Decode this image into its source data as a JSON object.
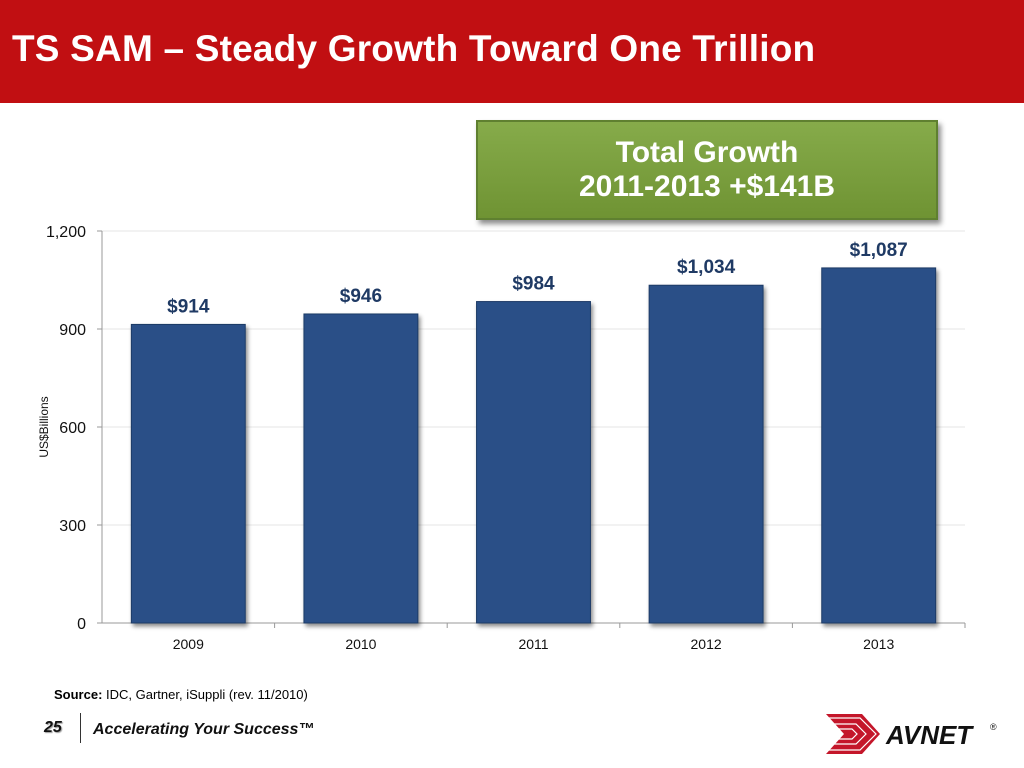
{
  "slide": {
    "title": "TS SAM – Steady Growth Toward One Trillion",
    "callout": {
      "line1": "Total Growth",
      "line2": "2011-2013 +$141B"
    },
    "source_label": "Source:",
    "source_text": " IDC, Gartner, iSuppli (rev. 11/2010)",
    "page_number": "25",
    "tagline": "Accelerating Your Success™",
    "logo_text": "AVNET",
    "logo_mark": "®"
  },
  "colors": {
    "header": "#c10f12",
    "bar": "#2a5087",
    "callout": "#7a9e3e",
    "data_label": "#1f3a64"
  },
  "chart_data": {
    "type": "bar",
    "categories": [
      "2009",
      "2010",
      "2011",
      "2012",
      "2013"
    ],
    "values": [
      914,
      946,
      984,
      1034,
      1087
    ],
    "data_labels": [
      "$914",
      "$946",
      "$984",
      "$1,034",
      "$1,087"
    ],
    "ylabel": "US$Billions",
    "ylim": [
      0,
      1200
    ],
    "yticks": [
      0,
      300,
      600,
      900,
      1200
    ],
    "ytick_labels": [
      "0",
      "300",
      "600",
      "900",
      "1,200"
    ],
    "grid": true,
    "legend": "none"
  }
}
